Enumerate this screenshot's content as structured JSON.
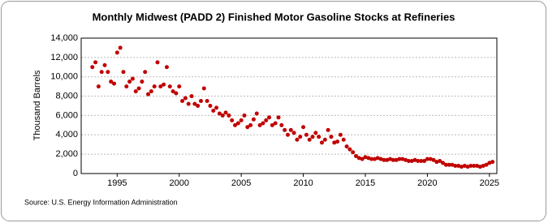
{
  "chart_data": {
    "type": "scatter",
    "title": "Monthly Midwest (PADD 2) Finished Motor Gasoline Stocks at Refineries",
    "y_label": "Thousand Barrels",
    "source": "Source: U.S. Energy Information Administration",
    "xlim": [
      1992.1,
      2025.6
    ],
    "xticks": [
      1995,
      2000,
      2005,
      2010,
      2015,
      2020,
      2025
    ],
    "ylim": [
      0,
      14000
    ],
    "yticks": [
      0,
      {
        "value": 2000,
        "label": "2,000"
      },
      {
        "value": 4000,
        "label": "4,000"
      },
      {
        "value": 6000,
        "label": "6,000"
      },
      {
        "value": 8000,
        "label": "8,000"
      },
      {
        "value": 10000,
        "label": "10,000"
      },
      {
        "value": 12000,
        "label": "12,000"
      },
      {
        "value": 14000,
        "label": "14,000"
      }
    ],
    "grid": true,
    "series": [
      {
        "name": "Midwest (PADD 2) Finished Motor Gasoline Stocks at Refineries",
        "color": "#c00000",
        "x": [
          1993,
          1993.25,
          1993.5,
          1993.75,
          1994,
          1994.25,
          1994.5,
          1994.75,
          1995,
          1995.25,
          1995.5,
          1995.75,
          1996,
          1996.25,
          1996.5,
          1996.75,
          1997,
          1997.25,
          1997.5,
          1997.75,
          1998,
          1998.25,
          1998.5,
          1998.75,
          1999,
          1999.25,
          1999.5,
          1999.75,
          2000,
          2000.25,
          2000.5,
          2000.75,
          2001,
          2001.25,
          2001.5,
          2001.75,
          2002,
          2002.25,
          2002.5,
          2002.75,
          2003,
          2003.25,
          2003.5,
          2003.75,
          2004,
          2004.25,
          2004.5,
          2004.75,
          2005,
          2005.25,
          2005.5,
          2005.75,
          2006,
          2006.25,
          2006.5,
          2006.75,
          2007,
          2007.25,
          2007.5,
          2007.75,
          2008,
          2008.25,
          2008.5,
          2008.75,
          2009,
          2009.25,
          2009.5,
          2009.75,
          2010,
          2010.25,
          2010.5,
          2010.75,
          2011,
          2011.25,
          2011.5,
          2011.75,
          2012,
          2012.25,
          2012.5,
          2012.75,
          2013,
          2013.25,
          2013.5,
          2013.75,
          2014,
          2014.25,
          2014.5,
          2014.75,
          2015,
          2015.25,
          2015.5,
          2015.75,
          2016,
          2016.25,
          2016.5,
          2016.75,
          2017,
          2017.25,
          2017.5,
          2017.75,
          2018,
          2018.25,
          2018.5,
          2018.75,
          2019,
          2019.25,
          2019.5,
          2019.75,
          2020,
          2020.25,
          2020.5,
          2020.75,
          2021,
          2021.25,
          2021.5,
          2021.75,
          2022,
          2022.25,
          2022.5,
          2022.75,
          2023,
          2023.25,
          2023.5,
          2023.75,
          2024,
          2024.25,
          2024.5,
          2024.75,
          2025,
          2025.25
        ],
        "values": [
          11000,
          11500,
          9000,
          10500,
          11200,
          10500,
          9500,
          9300,
          12500,
          13000,
          10500,
          9000,
          9500,
          9800,
          8500,
          8800,
          9500,
          10500,
          8200,
          8500,
          9000,
          11500,
          9000,
          9200,
          11000,
          9000,
          8500,
          8300,
          9000,
          7500,
          7800,
          7200,
          8000,
          7200,
          7000,
          7500,
          8800,
          7500,
          7000,
          6500,
          6800,
          6200,
          6000,
          6300,
          6000,
          5500,
          5000,
          5200,
          5500,
          6000,
          4800,
          5000,
          5600,
          6200,
          5000,
          5200,
          5500,
          5800,
          5000,
          5200,
          5800,
          5000,
          4500,
          4000,
          4500,
          4200,
          3500,
          3800,
          4800,
          4000,
          3500,
          3800,
          4200,
          3800,
          3200,
          3500,
          4500,
          3800,
          3200,
          3300,
          4000,
          3500,
          2800,
          2500,
          2200,
          1800,
          1600,
          1500,
          1700,
          1600,
          1500,
          1500,
          1600,
          1500,
          1400,
          1400,
          1500,
          1400,
          1400,
          1500,
          1500,
          1400,
          1300,
          1300,
          1400,
          1300,
          1300,
          1300,
          1500,
          1500,
          1400,
          1200,
          1300,
          1100,
          900,
          900,
          900,
          800,
          800,
          700,
          800,
          700,
          800,
          800,
          800,
          700,
          800,
          900,
          1100,
          1200
        ]
      }
    ]
  }
}
